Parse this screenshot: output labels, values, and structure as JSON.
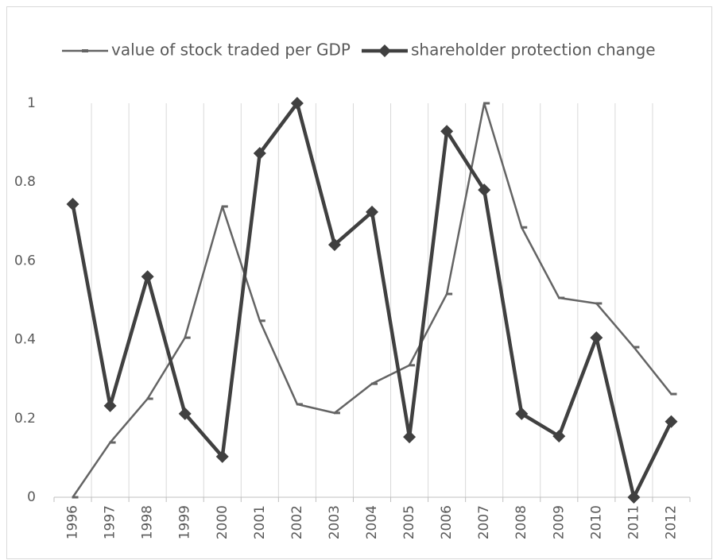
{
  "chart_data": {
    "type": "line",
    "categories": [
      "1996",
      "1997",
      "1998",
      "1999",
      "2000",
      "2001",
      "2002",
      "2003",
      "2004",
      "2005",
      "2006",
      "2007",
      "2008",
      "2009",
      "2010",
      "2011",
      "2012"
    ],
    "series": [
      {
        "name": "value of stock traded per GDP",
        "color": "#646464",
        "marker": "dash",
        "width": 2.5,
        "values": [
          0,
          0.139,
          0.25,
          0.405,
          0.738,
          0.448,
          0.236,
          0.214,
          0.288,
          0.335,
          0.516,
          1.0,
          0.685,
          0.506,
          0.492,
          0.381,
          0.262
        ]
      },
      {
        "name": "shareholder protection change",
        "color": "#404040",
        "marker": "diamond",
        "width": 4.5,
        "values": [
          0.744,
          0.232,
          0.56,
          0.212,
          0.103,
          0.873,
          1.0,
          0.641,
          0.724,
          0.153,
          0.929,
          0.78,
          0.212,
          0.155,
          0.405,
          0,
          0.192
        ]
      }
    ],
    "ylim": [
      0,
      1
    ],
    "yticks": [
      0,
      0.2,
      0.4,
      0.6,
      0.8,
      1
    ],
    "grid": true,
    "legend": "top"
  }
}
